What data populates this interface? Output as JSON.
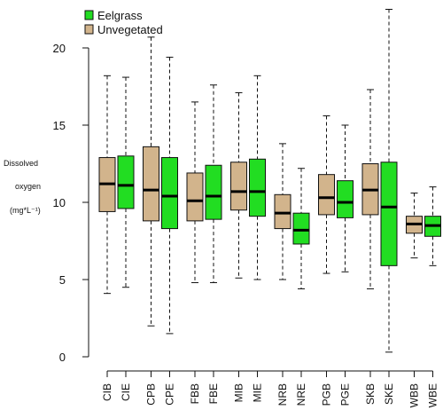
{
  "chart_data": {
    "type": "box",
    "title": "",
    "xlabel": "",
    "ylabel_lines": [
      "Dissolved",
      "oxygen",
      "(mg*L⁻¹)"
    ],
    "ylim": [
      0,
      21
    ],
    "yticks": [
      0,
      5,
      10,
      15,
      20
    ],
    "grid": false,
    "legend": {
      "placement": "top-left",
      "entries": [
        {
          "label": "Eelgrass",
          "color": "#22dd22"
        },
        {
          "label": "Unvegetated",
          "color": "#d2b48c"
        }
      ]
    },
    "colors": {
      "Eelgrass": "#22dd22",
      "Unvegetated": "#d2b48c"
    },
    "boxes": [
      {
        "label": "CIB",
        "group": "Unvegetated",
        "min": 4.1,
        "q1": 9.4,
        "median": 11.2,
        "q3": 12.9,
        "max": 18.2
      },
      {
        "label": "CIE",
        "group": "Eelgrass",
        "min": 4.5,
        "q1": 9.6,
        "median": 11.1,
        "q3": 13.0,
        "max": 18.1
      },
      {
        "label": "CPB",
        "group": "Unvegetated",
        "min": 2.0,
        "q1": 8.8,
        "median": 10.8,
        "q3": 13.6,
        "max": 20.7
      },
      {
        "label": "CPE",
        "group": "Eelgrass",
        "min": 1.5,
        "q1": 8.3,
        "median": 10.4,
        "q3": 12.9,
        "max": 19.4
      },
      {
        "label": "FBB",
        "group": "Unvegetated",
        "min": 4.8,
        "q1": 8.8,
        "median": 10.1,
        "q3": 11.9,
        "max": 16.5
      },
      {
        "label": "FBE",
        "group": "Eelgrass",
        "min": 4.8,
        "q1": 8.9,
        "median": 10.4,
        "q3": 12.4,
        "max": 17.6
      },
      {
        "label": "MIB",
        "group": "Unvegetated",
        "min": 5.1,
        "q1": 9.5,
        "median": 10.7,
        "q3": 12.6,
        "max": 17.1
      },
      {
        "label": "MIE",
        "group": "Eelgrass",
        "min": 5.0,
        "q1": 9.1,
        "median": 10.7,
        "q3": 12.8,
        "max": 18.2
      },
      {
        "label": "NRB",
        "group": "Unvegetated",
        "min": 5.0,
        "q1": 8.3,
        "median": 9.3,
        "q3": 10.5,
        "max": 13.8
      },
      {
        "label": "NRE",
        "group": "Eelgrass",
        "min": 4.4,
        "q1": 7.3,
        "median": 8.2,
        "q3": 9.3,
        "max": 12.2
      },
      {
        "label": "PGB",
        "group": "Unvegetated",
        "min": 5.4,
        "q1": 9.2,
        "median": 10.3,
        "q3": 11.8,
        "max": 15.6
      },
      {
        "label": "PGE",
        "group": "Eelgrass",
        "min": 5.5,
        "q1": 9.0,
        "median": 10.0,
        "q3": 11.4,
        "max": 15.0
      },
      {
        "label": "SKB",
        "group": "Unvegetated",
        "min": 4.4,
        "q1": 9.2,
        "median": 10.8,
        "q3": 12.5,
        "max": 17.3
      },
      {
        "label": "SKE",
        "group": "Eelgrass",
        "min": 0.3,
        "q1": 5.9,
        "median": 9.7,
        "q3": 12.6,
        "max": 22.5
      },
      {
        "label": "WBB",
        "group": "Unvegetated",
        "min": 6.4,
        "q1": 8.0,
        "median": 8.6,
        "q3": 9.1,
        "max": 10.6
      },
      {
        "label": "WBE",
        "group": "Eelgrass",
        "min": 5.9,
        "q1": 7.8,
        "median": 8.5,
        "q3": 9.1,
        "max": 11.0
      }
    ]
  }
}
